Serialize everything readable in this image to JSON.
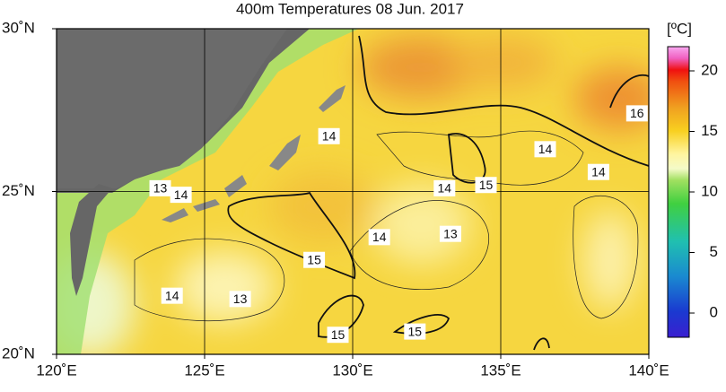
{
  "title": "400m Temperatures  08 Jun. 2017",
  "map": {
    "xlim": [
      120,
      140
    ],
    "ylim": [
      20,
      30
    ],
    "xticks": [
      {
        "value": 120,
        "label": "120˚E"
      },
      {
        "value": 125,
        "label": "125˚E"
      },
      {
        "value": 130,
        "label": "130˚E"
      },
      {
        "value": 135,
        "label": "135˚E"
      },
      {
        "value": 140,
        "label": "140˚E"
      }
    ],
    "yticks": [
      {
        "value": 20,
        "label": "20˚N"
      },
      {
        "value": 25,
        "label": "25˚N"
      },
      {
        "value": 30,
        "label": "30˚N"
      }
    ],
    "contour_labels": [
      {
        "value": 16,
        "lon": 139.6,
        "lat": 27.4
      },
      {
        "value": 14,
        "lon": 129.2,
        "lat": 26.7
      },
      {
        "value": 14,
        "lon": 136.5,
        "lat": 26.3
      },
      {
        "value": 14,
        "lon": 138.3,
        "lat": 25.6
      },
      {
        "value": 14,
        "lon": 133.1,
        "lat": 25.1
      },
      {
        "value": 15,
        "lon": 134.5,
        "lat": 25.2
      },
      {
        "value": 13,
        "lon": 123.5,
        "lat": 25.1
      },
      {
        "value": 14,
        "lon": 124.2,
        "lat": 24.9
      },
      {
        "value": 14,
        "lon": 130.9,
        "lat": 23.6
      },
      {
        "value": 13,
        "lon": 133.3,
        "lat": 23.7
      },
      {
        "value": 15,
        "lon": 128.7,
        "lat": 22.9
      },
      {
        "value": 14,
        "lon": 123.9,
        "lat": 21.8
      },
      {
        "value": 13,
        "lon": 126.2,
        "lat": 21.7
      },
      {
        "value": 15,
        "lon": 129.5,
        "lat": 20.6
      },
      {
        "value": 15,
        "lon": 132.1,
        "lat": 20.7
      }
    ]
  },
  "colorbar": {
    "label": "[ºC]",
    "lim": [
      -2,
      22
    ],
    "ticks": [
      0,
      5,
      10,
      15,
      20
    ]
  }
}
